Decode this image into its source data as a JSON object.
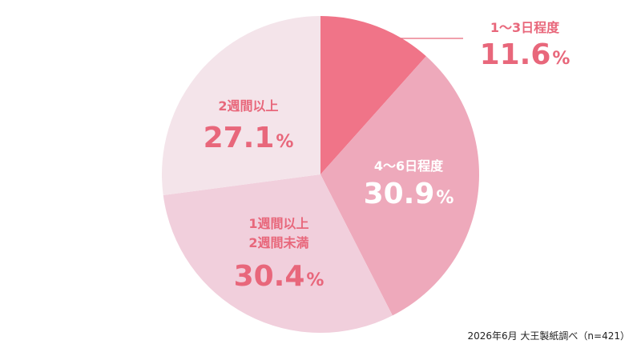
{
  "chart_data": {
    "type": "pie",
    "title": "",
    "slices": [
      {
        "label": "1〜3日程度",
        "lines": [
          "1〜3日程度"
        ],
        "value": 11.6,
        "display": "11.6",
        "color": "#f07488",
        "text_color": "#e8677b",
        "text_position": "outside"
      },
      {
        "label": "4〜6日程度",
        "lines": [
          "4〜6日程度"
        ],
        "value": 30.9,
        "display": "30.9",
        "color": "#eea9bb",
        "text_color": "#ffffff",
        "text_position": "inside"
      },
      {
        "label": "1週間以上2週間未満",
        "lines": [
          "1週間以上",
          "2週間未満"
        ],
        "value": 30.4,
        "display": "30.4",
        "color": "#f1cfdc",
        "text_color": "#e8677b",
        "text_position": "inside"
      },
      {
        "label": "2週間以上",
        "lines": [
          "2週間以上"
        ],
        "value": 27.1,
        "display": "27.1",
        "color": "#f4e4ea",
        "text_color": "#e8677b",
        "text_position": "inside"
      }
    ],
    "percent_symbol": "%",
    "start_angle": "12 o'clock",
    "direction": "clockwise"
  },
  "source": "2026年6月 大王製紙調べ（n=421）"
}
